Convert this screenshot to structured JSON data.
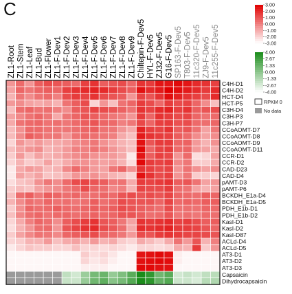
{
  "panel_letter": "C",
  "chart_data": {
    "type": "heatmap",
    "columns": [
      {
        "label": "ZL1-Root",
        "color": "#000000"
      },
      {
        "label": "ZL1-Stem",
        "color": "#000000"
      },
      {
        "label": "ZL1-Leaf",
        "color": "#000000"
      },
      {
        "label": "ZL1-Bud",
        "color": "#000000"
      },
      {
        "label": "ZL1-Flower",
        "color": "#000000"
      },
      {
        "label": "ZL1-F-Dev1",
        "color": "#000000"
      },
      {
        "label": "ZL1-F-Dev2",
        "color": "#000000"
      },
      {
        "label": "ZL1-F-Dev3",
        "color": "#000000"
      },
      {
        "label": "ZL1-F-Dev4",
        "color": "#000000"
      },
      {
        "label": "ZL1-F-Dev5",
        "color": "#000000"
      },
      {
        "label": "ZL1-F-Dev6",
        "color": "#000000"
      },
      {
        "label": "ZL1-F-Dev7",
        "color": "#000000"
      },
      {
        "label": "ZL1-F-Dev8",
        "color": "#000000"
      },
      {
        "label": "ZL1-F-Dev9",
        "color": "#000000"
      },
      {
        "label": "Chiltepin-F-Dev5",
        "color": "#000000"
      },
      {
        "label": "HYL-F-Dev5",
        "color": "#000000"
      },
      {
        "label": "ZJ32-F-Dev5",
        "color": "#000000"
      },
      {
        "label": "G16-F-Dev5",
        "color": "#000000"
      },
      {
        "label": "SP163-F-Dev5",
        "color": "#8a8a8a"
      },
      {
        "label": "T803-F-Dev5",
        "color": "#8a8a8a"
      },
      {
        "label": "11c320-F-Dev5",
        "color": "#8a8a8a"
      },
      {
        "label": "ZJ9-F-Dev5",
        "color": "#8a8a8a"
      },
      {
        "label": "11c255-F-Dev5",
        "color": "#8a8a8a"
      }
    ],
    "rows": [
      "C4H-D1",
      "C4H-D2",
      "HCT-D4",
      "HCT-P5",
      "C3H-D4",
      "C3H-P3",
      "C3H-P7",
      "CCoAOMT-D7",
      "CCoAOMT-D8",
      "CCoAOMT-D9",
      "CCoAOMT-D11",
      "CCR-D1",
      "CCR-D2",
      "CAD-D23",
      "CAD-D4",
      "pAMT-D3",
      "pAMT-P6",
      "BCKDH_E1a-D4",
      "BCKDH_E1a-D5",
      "PDH_E1b-D1",
      "PDH_E1b-D2",
      "KasI-D1",
      "KasI-D2",
      "KasI-D87",
      "ACLd-D4",
      "ACLd-D5",
      "AT3-D1",
      "AT3-D2",
      "AT3-D3"
    ],
    "expression_values": [
      [
        -0.5,
        0.5,
        -0.5,
        0.8,
        1.2,
        1.0,
        0.8,
        0.5,
        1.5,
        1.8,
        0.8,
        1.0,
        1.2,
        0.6,
        1.8,
        1.6,
        2.5,
        2.5,
        2.8,
        2.5,
        2.0,
        1.8,
        1.5
      ],
      [
        -0.8,
        0.6,
        0.2,
        0.6,
        0.8,
        0.6,
        1.5,
        1.8,
        2.0,
        2.2,
        2.0,
        1.6,
        1.2,
        0.8,
        2.6,
        2.0,
        2.4,
        3.0,
        2.7,
        2.4,
        2.0,
        1.6,
        2.0
      ],
      [
        -1.2,
        0.2,
        -0.3,
        0.3,
        0.5,
        0.0,
        1.2,
        1.6,
        1.4,
        1.8,
        1.2,
        1.0,
        0.8,
        -0.5,
        1.4,
        1.0,
        1.8,
        2.7,
        2.2,
        1.8,
        1.5,
        1.2,
        2.0
      ],
      [
        -0.6,
        -0.3,
        -0.8,
        -1.0,
        -0.8,
        -1.2,
        0.3,
        0.8,
        1.2,
        -2.0,
        -0.5,
        -1.5,
        0.3,
        0.6,
        1.6,
        1.2,
        0.5,
        1.6,
        1.2,
        1.4,
        0.6,
        -0.3,
        -1.5
      ],
      [
        -1.5,
        0.4,
        0.6,
        0.3,
        0.4,
        0.0,
        -0.3,
        0.8,
        1.0,
        1.4,
        1.2,
        1.0,
        0.7,
        0.3,
        1.8,
        1.4,
        2.0,
        2.2,
        1.5,
        1.8,
        0.8,
        1.0,
        1.2
      ],
      [
        -0.8,
        -0.2,
        0.3,
        0.6,
        0.2,
        -1.0,
        0.2,
        0.6,
        1.0,
        0.8,
        0.5,
        0.2,
        0.0,
        -0.5,
        1.6,
        0.6,
        1.8,
        1.6,
        1.2,
        1.4,
        0.6,
        0.3,
        0.5
      ],
      [
        -1.0,
        0.3,
        0.5,
        0.6,
        0.3,
        0.4,
        0.2,
        0.5,
        0.8,
        1.0,
        0.6,
        0.5,
        0.0,
        0.2,
        1.3,
        0.6,
        1.5,
        1.6,
        1.1,
        1.2,
        0.5,
        0.4,
        0.6
      ],
      [
        -1.4,
        -0.4,
        0.5,
        0.5,
        0.3,
        0.2,
        0.2,
        0.4,
        0.6,
        0.8,
        0.3,
        0.2,
        -0.5,
        -1.0,
        2.2,
        1.5,
        1.4,
        1.8,
        0.8,
        1.0,
        0.3,
        -0.8,
        0.2
      ],
      [
        -1.4,
        -0.3,
        0.8,
        0.5,
        0.2,
        0.2,
        -0.5,
        0.3,
        0.5,
        0.4,
        0.2,
        0.0,
        -1.0,
        -1.5,
        2.4,
        1.8,
        1.6,
        1.5,
        0.8,
        0.5,
        -0.3,
        -0.8,
        -0.3
      ],
      [
        -2.0,
        -0.5,
        -1.0,
        -0.6,
        -1.0,
        -1.0,
        -0.8,
        -0.3,
        0.0,
        0.2,
        -0.4,
        -0.8,
        -1.2,
        -1.5,
        2.6,
        1.0,
        1.6,
        1.6,
        0.6,
        0.7,
        -0.6,
        -1.2,
        -0.4
      ],
      [
        -1.5,
        -0.8,
        -0.5,
        -0.3,
        -1.2,
        -1.0,
        -0.6,
        0.0,
        0.0,
        0.3,
        0.0,
        -0.5,
        -1.0,
        -1.5,
        2.8,
        0.6,
        1.4,
        1.6,
        0.5,
        0.6,
        -0.6,
        -0.8,
        -1.0
      ],
      [
        -1.8,
        -0.6,
        -1.5,
        -0.8,
        -1.2,
        -1.0,
        -0.6,
        -0.3,
        0.0,
        -0.4,
        -0.6,
        -0.6,
        -1.0,
        -2.5,
        2.5,
        0.8,
        1.5,
        1.3,
        -0.5,
        0.5,
        -2.2,
        -2.0,
        -0.8
      ],
      [
        -2.0,
        -1.2,
        -1.8,
        -1.5,
        -0.8,
        -1.5,
        -1.0,
        -0.5,
        -0.4,
        -0.6,
        -0.8,
        -0.7,
        -1.2,
        -2.2,
        2.8,
        1.6,
        1.4,
        1.6,
        -0.2,
        0.2,
        -1.8,
        -1.8,
        -1.0
      ],
      [
        -2.5,
        -1.0,
        -0.6,
        -0.8,
        -1.4,
        -1.2,
        -0.2,
        0.5,
        0.0,
        -0.6,
        -0.8,
        0.2,
        0.6,
        -0.4,
        1.8,
        1.5,
        1.2,
        1.4,
        -0.5,
        0.3,
        -0.4,
        -0.8,
        -0.3
      ],
      [
        -2.5,
        -0.8,
        -1.2,
        -0.8,
        -1.6,
        -1.5,
        -1.2,
        -0.5,
        -0.6,
        -0.4,
        -0.8,
        -1.2,
        -1.5,
        -2.0,
        2.6,
        1.8,
        1.2,
        1.5,
        -0.5,
        0.2,
        -1.8,
        -1.8,
        -2.0
      ],
      [
        -2.2,
        -1.6,
        -1.4,
        -0.4,
        0.2,
        -0.3,
        0.5,
        1.2,
        1.4,
        1.0,
        0.8,
        0.2,
        0.3,
        -1.0,
        1.6,
        1.4,
        1.6,
        1.8,
        0.8,
        1.0,
        0.3,
        -0.8,
        -0.5
      ],
      [
        -1.8,
        -1.4,
        -1.6,
        -0.8,
        -0.5,
        -0.3,
        0.2,
        0.5,
        1.2,
        0.6,
        0.4,
        -0.2,
        0.0,
        -1.2,
        1.4,
        1.2,
        1.2,
        1.6,
        0.4,
        0.3,
        -0.8,
        -1.2,
        -0.8
      ],
      [
        -1.5,
        0.4,
        0.8,
        0.2,
        0.8,
        0.6,
        0.4,
        0.6,
        0.3,
        0.4,
        0.6,
        0.5,
        1.0,
        1.2,
        1.0,
        1.2,
        1.0,
        1.4,
        0.6,
        0.5,
        0.4,
        0.8,
        0.6
      ],
      [
        -1.2,
        -0.3,
        0.4,
        0.2,
        0.6,
        0.3,
        0.4,
        0.2,
        0.4,
        0.8,
        0.4,
        0.6,
        1.2,
        1.0,
        1.0,
        1.0,
        0.6,
        1.4,
        0.5,
        0.7,
        0.5,
        0.8,
        0.8
      ],
      [
        -1.8,
        -0.4,
        0.6,
        0.4,
        0.5,
        0.8,
        0.5,
        0.4,
        0.6,
        0.8,
        0.6,
        0.8,
        1.2,
        1.0,
        0.8,
        0.6,
        0.4,
        1.2,
        0.3,
        0.4,
        0.3,
        0.6,
        0.5
      ],
      [
        -1.5,
        -0.2,
        0.4,
        0.6,
        0.3,
        0.5,
        0.6,
        0.4,
        0.5,
        0.7,
        0.5,
        0.6,
        1.0,
        1.0,
        0.8,
        0.4,
        0.5,
        1.0,
        0.2,
        0.4,
        0.2,
        0.5,
        0.4
      ],
      [
        -2.0,
        -1.0,
        0.0,
        0.6,
        0.4,
        -0.3,
        0.8,
        1.2,
        1.6,
        1.8,
        1.0,
        0.8,
        0.2,
        -0.8,
        1.8,
        1.6,
        1.8,
        2.0,
        1.4,
        1.6,
        1.2,
        0.8,
        0.8
      ],
      [
        -2.2,
        -1.2,
        -0.5,
        0.4,
        0.5,
        -0.5,
        1.0,
        1.4,
        1.8,
        2.0,
        1.2,
        0.9,
        0.4,
        -1.0,
        2.0,
        1.8,
        2.0,
        2.2,
        1.6,
        1.6,
        1.4,
        1.0,
        0.6
      ],
      [
        -1.8,
        -0.8,
        -0.2,
        0.3,
        0.2,
        -0.2,
        0.6,
        0.8,
        1.0,
        1.2,
        0.6,
        0.5,
        0.2,
        -0.6,
        1.2,
        1.0,
        1.6,
        1.8,
        1.6,
        1.4,
        1.4,
        1.2,
        1.0
      ],
      [
        -2.0,
        -1.8,
        -1.2,
        -1.2,
        -0.6,
        -1.5,
        -1.0,
        -0.8,
        -1.2,
        -0.6,
        -1.2,
        -1.0,
        -1.8,
        -2.0,
        -1.0,
        -1.4,
        -1.8,
        -1.0,
        0.3,
        -0.6,
        1.0,
        -1.2,
        0.0
      ],
      [
        -2.5,
        -2.0,
        -1.6,
        -1.8,
        -1.8,
        -2.0,
        -2.0,
        -1.5,
        -2.0,
        -2.0,
        -2.2,
        -2.0,
        -2.2,
        -2.5,
        -2.0,
        -2.0,
        -2.2,
        -2.0,
        -1.0,
        -1.2,
        1.6,
        -1.8,
        -0.5
      ],
      [
        -2.8,
        -2.8,
        -2.8,
        -2.8,
        -2.8,
        -2.8,
        -2.8,
        -2.8,
        -1.8,
        -2.2,
        -2.0,
        -2.4,
        -2.8,
        -2.8,
        2.5,
        2.6,
        2.8,
        2.6,
        -2.6,
        -2.8,
        -2.8,
        -2.8,
        -2.8
      ],
      [
        -2.8,
        -2.8,
        -2.8,
        -2.8,
        -2.8,
        -2.8,
        -2.8,
        -2.8,
        -2.0,
        -2.4,
        -2.2,
        -2.6,
        -2.8,
        -2.8,
        2.6,
        2.7,
        2.8,
        2.7,
        -2.6,
        -2.8,
        -2.8,
        -2.8,
        -2.8
      ],
      [
        -2.8,
        -2.8,
        -2.8,
        -2.8,
        -2.8,
        -2.8,
        -2.8,
        -2.8,
        -2.6,
        -2.6,
        -2.6,
        -2.8,
        -2.8,
        -2.8,
        2.8,
        2.8,
        2.6,
        2.6,
        -2.8,
        -2.8,
        -2.8,
        -2.8,
        -2.8
      ]
    ],
    "capsaicinoid_rows": [
      "Capsaicin",
      "Dihydrocapsaicin"
    ],
    "capsaicinoid_values": [
      [
        null,
        null,
        null,
        null,
        null,
        null,
        -1.8,
        -2.4,
        -0.5,
        0.8,
        1.2,
        -0.3,
        0.5,
        1.8,
        4.0,
        3.2,
        1.0,
        1.8,
        -2.4,
        -2.0,
        -2.4,
        -1.8,
        -1.6
      ],
      [
        null,
        null,
        null,
        null,
        null,
        null,
        -2.0,
        -2.2,
        -0.4,
        1.0,
        1.6,
        0.2,
        0.8,
        2.0,
        4.0,
        3.4,
        1.4,
        2.0,
        -2.2,
        -2.2,
        -2.6,
        -1.5,
        -1.2
      ]
    ],
    "legend": {
      "expression": {
        "ticks": [
          "3.00",
          "2.00",
          "1.00",
          "0.00",
          "-1.00",
          "-2.00",
          "-3.00"
        ],
        "colors": [
          "#e00000",
          "#ffffff"
        ]
      },
      "capsaicinoid": {
        "ticks": [
          "4.00",
          "2.67",
          "1.33",
          "0.00",
          "-1.33",
          "-2.67",
          "-4.00"
        ],
        "colors": [
          "#1a8c1a",
          "#ffffff"
        ]
      },
      "rpkm0_label": "RPKM 0",
      "rpkm0_color": "#ffffff",
      "nodata_label": "No data",
      "nodata_color": "#9a9a9a"
    }
  }
}
